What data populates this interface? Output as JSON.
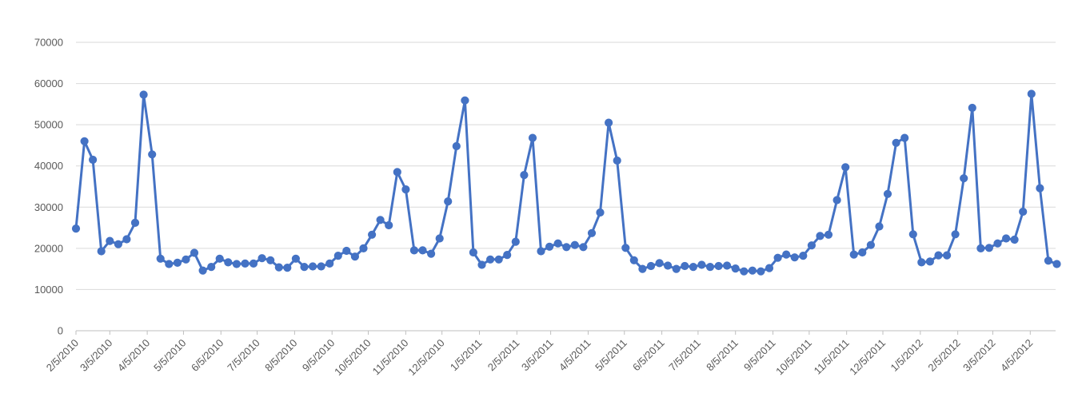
{
  "chart_data": {
    "type": "line",
    "title": "",
    "xlabel": "",
    "ylabel": "",
    "ylim": [
      0,
      70000
    ],
    "y_ticks": [
      0,
      10000,
      20000,
      30000,
      40000,
      50000,
      60000,
      70000
    ],
    "y_tick_labels": [
      "0",
      "10000",
      "20000",
      "30000",
      "40000",
      "50000",
      "60000",
      "70000"
    ],
    "x_ticks": [
      "2/5/2010",
      "3/5/2010",
      "4/5/2010",
      "5/5/2010",
      "6/5/2010",
      "7/5/2010",
      "8/5/2010",
      "9/5/2010",
      "10/5/2010",
      "11/5/2010",
      "12/5/2010",
      "1/5/2011",
      "2/5/2011",
      "3/5/2011",
      "4/5/2011",
      "5/5/2011",
      "6/5/2011",
      "7/5/2011",
      "8/5/2011",
      "9/5/2011",
      "10/5/2011",
      "11/5/2011",
      "12/5/2011",
      "1/5/2012",
      "2/5/2012",
      "3/5/2012",
      "4/5/2012"
    ],
    "x_range": [
      "2/5/2010",
      "4/26/2012"
    ],
    "grid": "horizontal",
    "legend": "none",
    "colors": {
      "series": "#4472c4",
      "grid": "#d9d9d9",
      "axis": "#bfbfbf",
      "text": "#595959"
    },
    "series": [
      {
        "x": [
          "2/5/2010",
          "2/12/2010",
          "2/19/2010",
          "2/26/2010",
          "3/5/2010",
          "3/12/2010",
          "3/19/2010",
          "3/26/2010",
          "4/2/2010",
          "4/9/2010",
          "4/16/2010",
          "4/23/2010",
          "4/30/2010",
          "5/7/2010",
          "5/14/2010",
          "5/21/2010",
          "5/28/2010",
          "6/4/2010",
          "6/11/2010",
          "6/18/2010",
          "6/25/2010",
          "7/2/2010",
          "7/9/2010",
          "7/16/2010",
          "7/23/2010",
          "7/30/2010",
          "8/6/2010",
          "8/13/2010",
          "8/20/2010",
          "8/27/2010",
          "9/3/2010",
          "9/10/2010",
          "9/17/2010",
          "9/24/2010",
          "10/1/2010",
          "10/8/2010",
          "10/15/2010",
          "10/22/2010",
          "10/29/2010",
          "11/5/2010",
          "11/12/2010",
          "11/19/2010",
          "11/26/2010",
          "12/3/2010",
          "12/10/2010",
          "12/17/2010",
          "12/24/2010",
          "12/31/2010",
          "1/7/2011",
          "1/14/2011",
          "1/21/2011",
          "1/28/2011",
          "2/4/2011",
          "2/11/2011",
          "2/18/2011",
          "2/25/2011",
          "3/4/2011",
          "3/11/2011",
          "3/18/2011",
          "3/25/2011",
          "4/1/2011",
          "4/8/2011",
          "4/15/2011",
          "4/22/2011",
          "4/29/2011",
          "5/6/2011",
          "5/13/2011",
          "5/20/2011",
          "5/27/2011",
          "6/3/2011",
          "6/10/2011",
          "6/17/2011",
          "6/24/2011",
          "7/1/2011",
          "7/8/2011",
          "7/15/2011",
          "7/22/2011",
          "7/29/2011",
          "8/5/2011",
          "8/12/2011",
          "8/19/2011",
          "8/26/2011",
          "9/2/2011",
          "9/9/2011",
          "9/16/2011",
          "9/23/2011",
          "9/30/2011",
          "10/7/2011",
          "10/14/2011",
          "10/21/2011",
          "10/28/2011",
          "11/4/2011",
          "11/11/2011",
          "11/18/2011",
          "11/25/2011",
          "12/2/2011",
          "12/9/2011",
          "12/16/2011",
          "12/23/2011",
          "12/30/2011",
          "1/6/2012",
          "1/13/2012",
          "1/20/2012",
          "1/27/2012",
          "2/3/2012",
          "2/10/2012",
          "2/17/2012",
          "2/24/2012",
          "3/2/2012",
          "3/9/2012",
          "3/16/2012",
          "3/23/2012",
          "3/30/2012",
          "4/6/2012",
          "4/13/2012",
          "4/20/2012",
          "4/27/2012"
        ],
        "values": [
          24800,
          46000,
          41500,
          19300,
          21800,
          21000,
          22200,
          26200,
          57300,
          42800,
          17500,
          16200,
          16500,
          17300,
          18900,
          14600,
          15500,
          17500,
          16600,
          16200,
          16300,
          16300,
          17600,
          17100,
          15400,
          15300,
          17500,
          15500,
          15600,
          15600,
          16300,
          18200,
          19400,
          18000,
          20000,
          23300,
          26900,
          25600,
          38500,
          34300,
          19500,
          19500,
          18700,
          22400,
          31400,
          44800,
          55900,
          19000,
          16000,
          17300,
          17300,
          18400,
          21600,
          37800,
          46800,
          19300,
          20400,
          21200,
          20300,
          20800,
          20300,
          23700,
          28700,
          50500,
          41300,
          20100,
          17100,
          15000,
          15700,
          16400,
          15800,
          15000,
          15700,
          15500,
          16000,
          15500,
          15700,
          15800,
          15100,
          14400,
          14600,
          14400,
          15200,
          17700,
          18500,
          17800,
          18200,
          20700,
          23000,
          23300,
          31700,
          39700,
          18500,
          19000,
          20800,
          25300,
          33200,
          45600,
          46800,
          23400,
          16600,
          16800,
          18300,
          18300,
          23400,
          37000,
          54100,
          20000,
          20100,
          21200,
          22400,
          22100,
          28900,
          57500,
          34600,
          17000,
          16200
        ]
      }
    ]
  }
}
